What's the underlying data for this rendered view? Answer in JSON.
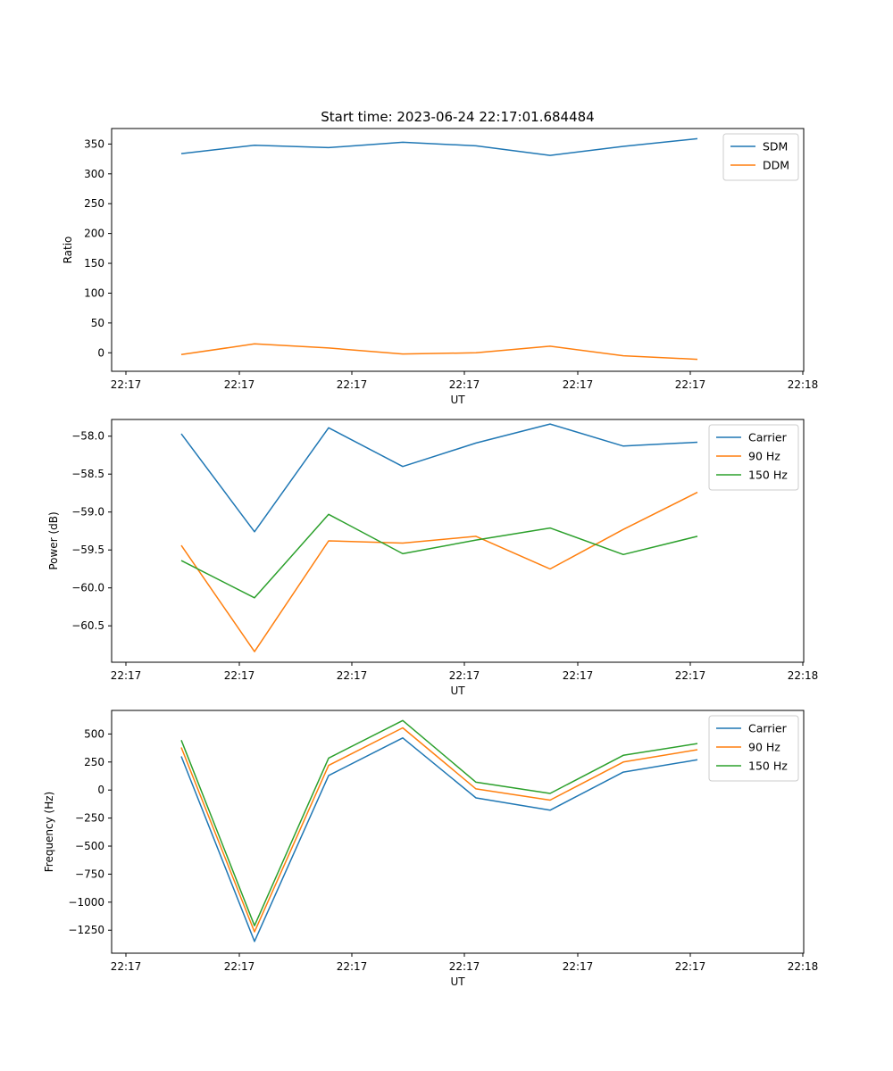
{
  "title": "Start time: 2023-06-24 22:17:01.684484",
  "x_tick_labels": [
    "22:17",
    "22:17",
    "22:17",
    "22:17",
    "22:17",
    "22:17",
    "22:18"
  ],
  "chart_data": [
    {
      "type": "line",
      "xlabel": "UT",
      "ylabel": "Ratio",
      "ylim": [
        -31,
        376
      ],
      "yticks": [
        0,
        50,
        100,
        150,
        200,
        250,
        300,
        350
      ],
      "ytick_labels": [
        "0",
        "50",
        "100",
        "150",
        "200",
        "250",
        "300",
        "350"
      ],
      "legend": "top-right",
      "grid": false,
      "series": [
        {
          "name": "SDM",
          "color": "#1f77b4",
          "values": [
            334,
            348,
            344,
            353,
            347,
            331,
            346,
            359
          ]
        },
        {
          "name": "DDM",
          "color": "#ff7f0e",
          "values": [
            -3,
            15,
            8,
            -2,
            0,
            11,
            -5,
            -11
          ]
        }
      ]
    },
    {
      "type": "line",
      "xlabel": "UT",
      "ylabel": "Power (dB)",
      "ylim": [
        -60.98,
        -57.78
      ],
      "yticks": [
        -60.5,
        -60.0,
        -59.5,
        -59.0,
        -58.5,
        -58.0
      ],
      "ytick_labels": [
        "−60.5",
        "−60.0",
        "−59.5",
        "−59.0",
        "−58.5",
        "−58.0"
      ],
      "legend": "top-right",
      "grid": false,
      "series": [
        {
          "name": "Carrier",
          "color": "#1f77b4",
          "values": [
            -57.97,
            -59.26,
            -57.89,
            -58.4,
            -58.09,
            -57.84,
            -58.13,
            -58.08
          ]
        },
        {
          "name": "90 Hz",
          "color": "#ff7f0e",
          "values": [
            -59.44,
            -60.84,
            -59.38,
            -59.41,
            -59.32,
            -59.75,
            -59.23,
            -58.74
          ]
        },
        {
          "name": "150 Hz",
          "color": "#2ca02c",
          "values": [
            -59.64,
            -60.13,
            -59.03,
            -59.55,
            -59.37,
            -59.21,
            -59.56,
            -59.32
          ]
        }
      ]
    },
    {
      "type": "line",
      "xlabel": "UT",
      "ylabel": "Frequency (Hz)",
      "ylim": [
        -1455,
        710
      ],
      "yticks": [
        -1250,
        -1000,
        -750,
        -500,
        -250,
        0,
        250,
        500
      ],
      "ytick_labels": [
        "−1250",
        "−1000",
        "−750",
        "−500",
        "−250",
        "0",
        "250",
        "500"
      ],
      "legend": "top-right",
      "grid": false,
      "series": [
        {
          "name": "Carrier",
          "color": "#1f77b4",
          "values": [
            300,
            -1350,
            130,
            465,
            -70,
            -180,
            160,
            270
          ]
        },
        {
          "name": "90 Hz",
          "color": "#ff7f0e",
          "values": [
            380,
            -1265,
            220,
            555,
            10,
            -90,
            250,
            360
          ]
        },
        {
          "name": "150 Hz",
          "color": "#2ca02c",
          "values": [
            445,
            -1210,
            285,
            620,
            70,
            -30,
            310,
            415
          ]
        }
      ]
    }
  ]
}
